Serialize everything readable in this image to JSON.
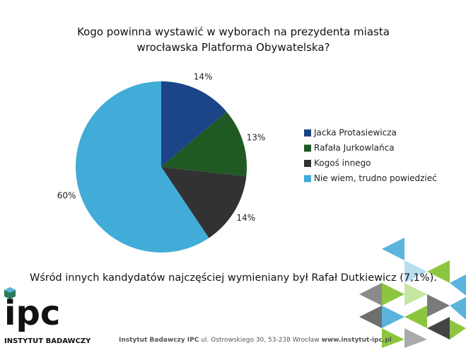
{
  "chart_data": {
    "type": "pie",
    "title": "Kogo powinna wystawić w wyborach na prezydenta miasta wrocławska Platforma Obywatelska?",
    "categories": [
      "Jacka Protasiewicza",
      "Rafała Jurkowlańca",
      "Kogoś innego",
      "Nie wiem, trudno powiedzieć"
    ],
    "values": [
      14,
      13,
      14,
      60
    ],
    "value_labels": [
      "14%",
      "13%",
      "14%",
      "60%"
    ],
    "colors": [
      "#1c4587",
      "#1f5a23",
      "#323235",
      "#41acd8"
    ],
    "legend": "right",
    "annotation": "Wśród innych kandydatów najczęściej wymieniany był Rafał Dutkiewicz (7,1%)."
  },
  "logo": {
    "text": "ipc",
    "subtitle": "INSTYTUT BADAWCZY"
  },
  "footer": {
    "org": "Instytut Badawczy IPC",
    "address": "ul. Ostrowskiego 30, 53-238 Wrocław",
    "url": "www.instytut-ipc.pl"
  }
}
